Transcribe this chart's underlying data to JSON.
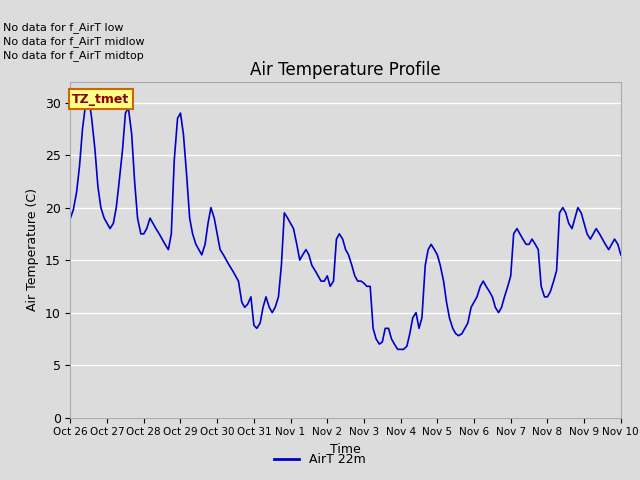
{
  "title": "Air Temperature Profile",
  "ylabel": "Air Temperature (C)",
  "xlabel": "Time",
  "legend_label": "AirT 22m",
  "bg_color": "#dcdcdc",
  "line_color": "#0000cc",
  "ylim": [
    0,
    32
  ],
  "yticks": [
    0,
    5,
    10,
    15,
    20,
    25,
    30
  ],
  "no_data_texts": [
    "No data for f_AirT low",
    "No data for f_AirT midlow",
    "No data for f_AirT midtop"
  ],
  "tz_annotation": "TZ_tmet",
  "x_tick_labels": [
    "Oct 26",
    "Oct 27",
    "Oct 28",
    "Oct 29",
    "Oct 30",
    "Oct 31",
    "Nov 1",
    "Nov 2",
    "Nov 3",
    "Nov 4",
    "Nov 5",
    "Nov 6",
    "Nov 7",
    "Nov 8",
    "Nov 9",
    "Nov 10"
  ],
  "time_data": [
    0.0,
    0.08,
    0.17,
    0.25,
    0.33,
    0.42,
    0.5,
    0.58,
    0.67,
    0.75,
    0.83,
    0.92,
    1.0,
    1.08,
    1.17,
    1.25,
    1.33,
    1.42,
    1.5,
    1.58,
    1.67,
    1.75,
    1.83,
    1.92,
    2.0,
    2.08,
    2.17,
    2.25,
    2.33,
    2.42,
    2.5,
    2.58,
    2.67,
    2.75,
    2.83,
    2.92,
    3.0,
    3.08,
    3.17,
    3.25,
    3.33,
    3.42,
    3.5,
    3.58,
    3.67,
    3.75,
    3.83,
    3.92,
    4.0,
    4.08,
    4.17,
    4.25,
    4.33,
    4.42,
    4.5,
    4.58,
    4.67,
    4.75,
    4.83,
    4.92,
    5.0,
    5.08,
    5.17,
    5.25,
    5.33,
    5.42,
    5.5,
    5.58,
    5.67,
    5.75,
    5.83,
    5.92,
    6.0,
    6.08,
    6.17,
    6.25,
    6.33,
    6.42,
    6.5,
    6.58,
    6.67,
    6.75,
    6.83,
    6.92,
    7.0,
    7.08,
    7.17,
    7.25,
    7.33,
    7.42,
    7.5,
    7.58,
    7.67,
    7.75,
    7.83,
    7.92,
    8.0,
    8.08,
    8.17,
    8.25,
    8.33,
    8.42,
    8.5,
    8.58,
    8.67,
    8.75,
    8.83,
    8.92,
    9.0,
    9.08,
    9.17,
    9.25,
    9.33,
    9.42,
    9.5,
    9.58,
    9.67,
    9.75,
    9.83,
    9.92,
    10.0,
    10.08,
    10.17,
    10.25,
    10.33,
    10.42,
    10.5,
    10.58,
    10.67,
    10.75,
    10.83,
    10.92,
    11.0,
    11.08,
    11.17,
    11.25,
    11.33,
    11.42,
    11.5,
    11.58,
    11.67,
    11.75,
    11.83,
    11.92,
    12.0,
    12.08,
    12.17,
    12.25,
    12.33,
    12.42,
    12.5,
    12.58,
    12.67,
    12.75,
    12.83,
    12.92,
    13.0,
    13.08,
    13.17,
    13.25,
    13.33,
    13.42,
    13.5,
    13.58,
    13.67,
    13.75,
    13.83,
    13.92,
    14.0,
    14.08,
    14.17,
    14.25,
    14.33,
    14.42,
    14.5,
    14.58,
    14.67,
    14.75,
    14.83,
    14.92,
    15.0
  ],
  "temp_data": [
    19.0,
    19.8,
    21.5,
    24.0,
    27.5,
    30.0,
    30.5,
    28.5,
    25.5,
    22.0,
    20.0,
    19.0,
    18.5,
    18.0,
    18.5,
    20.0,
    22.5,
    25.5,
    29.0,
    29.5,
    27.0,
    22.5,
    19.0,
    17.5,
    17.5,
    18.0,
    19.0,
    18.5,
    18.0,
    17.5,
    17.0,
    16.5,
    16.0,
    17.5,
    24.5,
    28.5,
    29.0,
    27.0,
    23.0,
    19.0,
    17.5,
    16.5,
    16.0,
    15.5,
    16.5,
    18.5,
    20.0,
    19.0,
    17.5,
    16.0,
    15.5,
    15.0,
    14.5,
    14.0,
    13.5,
    13.0,
    11.0,
    10.5,
    10.8,
    11.5,
    8.8,
    8.5,
    9.0,
    10.5,
    11.5,
    10.5,
    10.0,
    10.5,
    11.5,
    14.5,
    19.5,
    19.0,
    18.5,
    18.0,
    16.5,
    15.0,
    15.5,
    16.0,
    15.5,
    14.5,
    14.0,
    13.5,
    13.0,
    13.0,
    13.5,
    12.5,
    13.0,
    17.0,
    17.5,
    17.0,
    16.0,
    15.5,
    14.5,
    13.5,
    13.0,
    13.0,
    12.8,
    12.5,
    12.5,
    8.5,
    7.5,
    7.0,
    7.2,
    8.5,
    8.5,
    7.5,
    7.0,
    6.5,
    6.5,
    6.5,
    6.8,
    8.0,
    9.5,
    10.0,
    8.5,
    9.5,
    14.5,
    16.0,
    16.5,
    16.0,
    15.5,
    14.5,
    13.0,
    11.0,
    9.5,
    8.5,
    8.0,
    7.8,
    8.0,
    8.5,
    9.0,
    10.5,
    11.0,
    11.5,
    12.5,
    13.0,
    12.5,
    12.0,
    11.5,
    10.5,
    10.0,
    10.5,
    11.5,
    12.5,
    13.5,
    17.5,
    18.0,
    17.5,
    17.0,
    16.5,
    16.5,
    17.0,
    16.5,
    16.0,
    12.5,
    11.5,
    11.5,
    12.0,
    13.0,
    14.0,
    19.5,
    20.0,
    19.5,
    18.5,
    18.0,
    19.0,
    20.0,
    19.5,
    18.5,
    17.5,
    17.0,
    17.5,
    18.0,
    17.5,
    17.0,
    16.5,
    16.0,
    16.5,
    17.0,
    16.5,
    15.5
  ]
}
